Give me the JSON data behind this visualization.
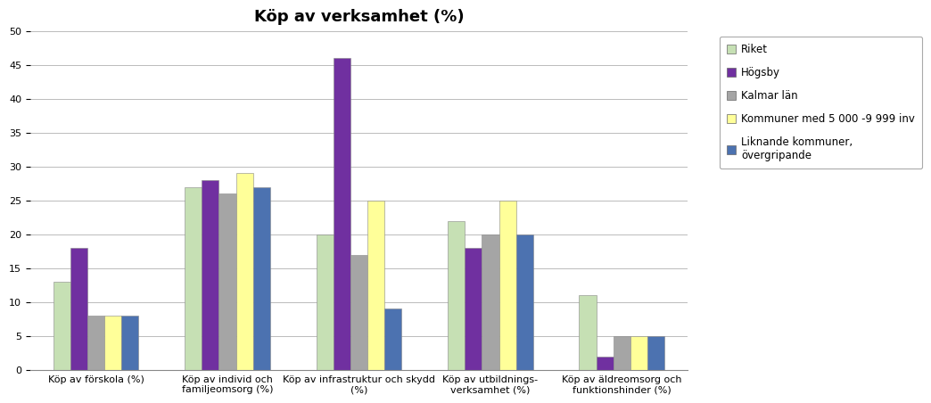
{
  "title": "Köp av verksamhet (%)",
  "categories": [
    "Köp av förskola (%)",
    "Köp av individ och\nfamiljeomsorg (%)",
    "Köp av infrastruktur och skydd\n(%)",
    "Köp av utbildnings-\nverksamhet (%)",
    "Köp av äldreomsorg och\nfunktionshinder (%)"
  ],
  "series": [
    {
      "name": "Riket",
      "color": "#c6e0b4",
      "values": [
        13,
        27,
        20,
        22,
        11
      ]
    },
    {
      "name": "Högsby",
      "color": "#7030a0",
      "values": [
        18,
        28,
        46,
        18,
        2
      ]
    },
    {
      "name": "Kalmar län",
      "color": "#a5a5a5",
      "values": [
        8,
        26,
        17,
        20,
        5
      ]
    },
    {
      "name": "Kommuner med 5 000 -9 999 inv",
      "color": "#ffff99",
      "values": [
        8,
        29,
        25,
        25,
        5
      ]
    },
    {
      "name": "Liknande kommuner,\növergripande",
      "color": "#4c72b0",
      "values": [
        8,
        27,
        9,
        20,
        5
      ]
    }
  ],
  "ylim": [
    0,
    50
  ],
  "yticks": [
    0,
    5,
    10,
    15,
    20,
    25,
    30,
    35,
    40,
    45,
    50
  ],
  "background_color": "#ffffff",
  "grid_color": "#bbbbbb",
  "title_fontsize": 13,
  "legend_fontsize": 8.5,
  "axis_fontsize": 8,
  "bar_width": 0.13
}
